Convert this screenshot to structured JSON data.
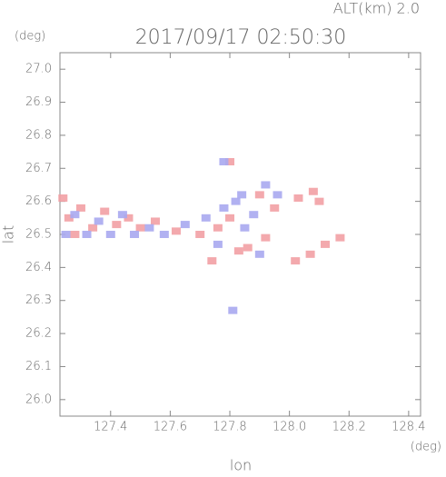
{
  "chart_data": {
    "type": "scatter",
    "title": "2017/09/17 02:50:30",
    "subtitle": "ALT(km) 2.0",
    "y_unit": "(deg)",
    "x_unit": "(deg)",
    "xlabel": "lon",
    "ylabel": "lat",
    "xlim": [
      127.23,
      128.44
    ],
    "ylim": [
      25.95,
      27.05
    ],
    "xticks": [
      127.4,
      127.6,
      127.8,
      {
        "value": 128,
        "label": "128.0"
      },
      128.2,
      128.4
    ],
    "yticks": [
      {
        "value": 26,
        "label": "26.0"
      },
      26.1,
      26.2,
      26.3,
      26.4,
      26.5,
      26.6,
      26.7,
      26.8,
      26.9,
      {
        "value": 27,
        "label": "27.0"
      }
    ],
    "series": [
      {
        "color": "#f2a0a4",
        "x": [
          127.24,
          127.26,
          127.3,
          127.34,
          127.38,
          127.42,
          127.46,
          127.5,
          127.55,
          127.62,
          127.7,
          127.76,
          127.8,
          127.86,
          127.9,
          127.95,
          127.92,
          128.03,
          128.08,
          128.1,
          128.17,
          128.12,
          128.07,
          128.02,
          127.8,
          127.74,
          127.83,
          127.28
        ],
        "y": [
          26.61,
          26.55,
          26.58,
          26.52,
          26.57,
          26.53,
          26.55,
          26.52,
          26.54,
          26.51,
          26.5,
          26.52,
          26.55,
          26.46,
          26.62,
          26.58,
          26.49,
          26.61,
          26.63,
          26.6,
          26.49,
          26.47,
          26.44,
          26.42,
          26.72,
          26.42,
          26.45,
          26.5
        ]
      },
      {
        "color": "#a8a8f0",
        "x": [
          127.25,
          127.28,
          127.32,
          127.36,
          127.4,
          127.44,
          127.48,
          127.53,
          127.58,
          127.65,
          127.72,
          127.78,
          127.82,
          127.88,
          127.92,
          127.96,
          127.85,
          127.9,
          127.78,
          127.76,
          127.84,
          127.81
        ],
        "y": [
          26.5,
          26.56,
          26.5,
          26.54,
          26.5,
          26.56,
          26.5,
          26.52,
          26.5,
          26.53,
          26.55,
          26.58,
          26.6,
          26.56,
          26.65,
          26.62,
          26.52,
          26.44,
          26.72,
          26.47,
          26.62,
          26.27
        ]
      }
    ]
  }
}
